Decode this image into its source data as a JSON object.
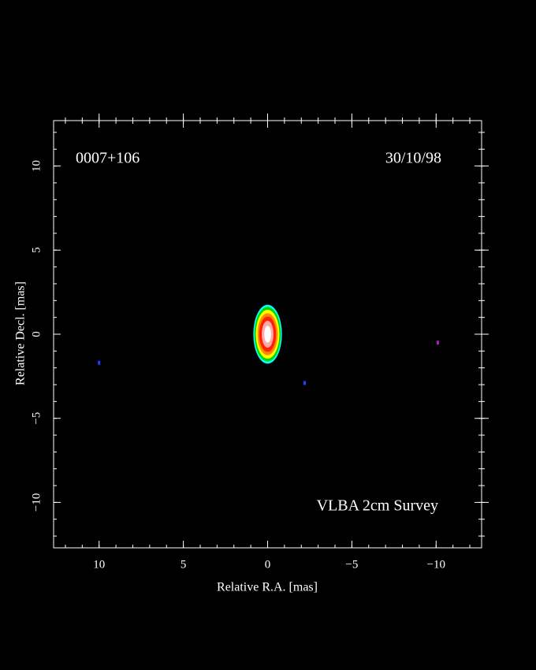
{
  "chart_data": {
    "type": "map",
    "title": "0007+106",
    "date": "30/10/98",
    "annotation": "VLBA 2cm Survey",
    "x_label": "Relative R.A. [mas]",
    "y_label": "Relative Decl. [mas]",
    "xlim": [
      12.7,
      -12.7
    ],
    "ylim": [
      -12.7,
      12.7
    ],
    "xticks": [
      10,
      5,
      0,
      {
        "value": -5,
        "label": "−5"
      },
      {
        "value": -10,
        "label": "−10"
      }
    ],
    "yticks": [
      {
        "value": -10,
        "label": "−10"
      },
      {
        "value": -5,
        "label": "−5"
      },
      0,
      5,
      10
    ],
    "xminorticks": [
      12,
      11,
      10,
      9,
      8,
      7,
      6,
      5,
      4,
      3,
      2,
      1,
      0,
      -1,
      -2,
      -3,
      -4,
      -5,
      -6,
      -7,
      -8,
      -9,
      -10,
      -11,
      -12
    ],
    "yminorticks": [
      -12,
      -11,
      -10,
      -9,
      -8,
      -7,
      -6,
      -5,
      -4,
      -3,
      -2,
      -1,
      0,
      1,
      2,
      3,
      4,
      5,
      6,
      7,
      8,
      9,
      10,
      11,
      12
    ],
    "source": {
      "x": 0,
      "y": 0
    },
    "contours": [
      {
        "color": "#00ffff",
        "rx": 0.85,
        "ry": 1.75
      },
      {
        "color": "#00d800",
        "rx": 0.78,
        "ry": 1.62
      },
      {
        "color": "#ffff00",
        "rx": 0.7,
        "ry": 1.45
      },
      {
        "color": "#ff8800",
        "rx": 0.6,
        "ry": 1.25
      },
      {
        "color": "#ff2000",
        "rx": 0.5,
        "ry": 1.05
      },
      {
        "color": "#ffa8a8",
        "rx": 0.35,
        "ry": 0.8
      },
      {
        "color": "#ffffff",
        "rx": 0.2,
        "ry": 0.5
      }
    ],
    "specks": {
      "x": [
        10,
        -2.2,
        -10.1
      ],
      "y": [
        -1.7,
        -2.9,
        -0.5
      ],
      "colors": [
        "#2040ff",
        "#2040ff",
        "#a020c0"
      ]
    }
  }
}
